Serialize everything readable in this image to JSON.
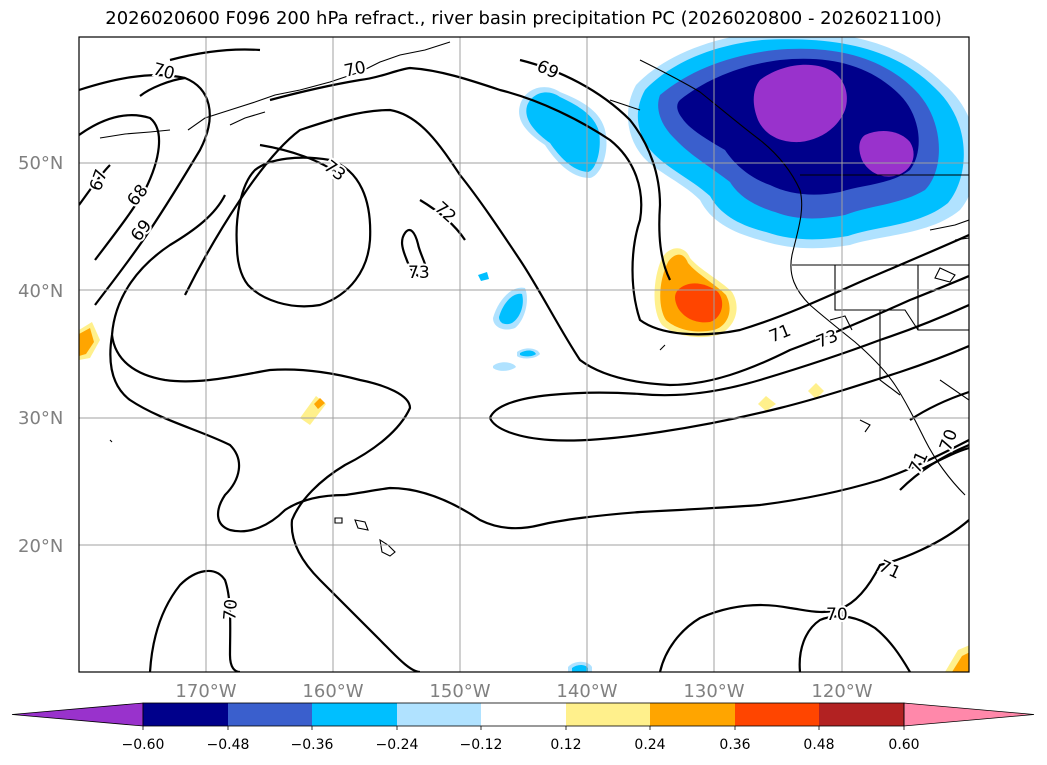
{
  "title": "2026020600 F096 200 hPa refract., river basin precipitation PC (2026020800 - 2026021100)",
  "map": {
    "lat_labels": [
      "50°N",
      "40°N",
      "30°N",
      "20°N"
    ],
    "lon_labels": [
      "170°W",
      "160°W",
      "150°W",
      "140°W",
      "130°W",
      "120°W"
    ],
    "contour_labels": [
      "70",
      "70",
      "69",
      "67",
      "68",
      "69",
      "73",
      "72",
      "73",
      "71",
      "73",
      "71",
      "70",
      "71",
      "70",
      "70"
    ],
    "gridlines": true
  },
  "colorbar": {
    "colors": [
      "#9932cc",
      "#00008b",
      "#3a5fcd",
      "#00bfff",
      "#b0e2ff",
      "#ffffff",
      "#fff08c",
      "#ffa500",
      "#ff4500",
      "#b22222",
      "#ff88aa"
    ],
    "ticks": [
      "−0.60",
      "−0.48",
      "−0.36",
      "−0.24",
      "−0.12",
      "0.12",
      "0.24",
      "0.36",
      "0.48",
      "0.60"
    ],
    "extend": "both"
  },
  "chart_data": {
    "type": "heatmap",
    "title": "2026020600 F096 200 hPa refract., river basin precipitation PC (2026020800 - 2026021100)",
    "xlabel": "",
    "ylabel": "",
    "lon_range": [
      -180,
      -110
    ],
    "lat_range": [
      10,
      60
    ],
    "contour_field": "200 hPa refractivity",
    "contour_levels": [
      67,
      68,
      69,
      70,
      71,
      72,
      73
    ],
    "shaded_field": "river basin precipitation PC",
    "shade_levels": [
      -0.6,
      -0.48,
      -0.36,
      -0.24,
      -0.12,
      0.12,
      0.24,
      0.36,
      0.48,
      0.6
    ],
    "features": [
      {
        "name": "strong negative PC",
        "region": "Pacific Northwest / British Columbia",
        "min": -0.6
      },
      {
        "name": "positive PC",
        "region": "off California coast",
        "max": 0.36
      },
      {
        "name": "weak negative PC",
        "region": "Gulf of Alaska",
        "min": -0.36
      }
    ]
  }
}
